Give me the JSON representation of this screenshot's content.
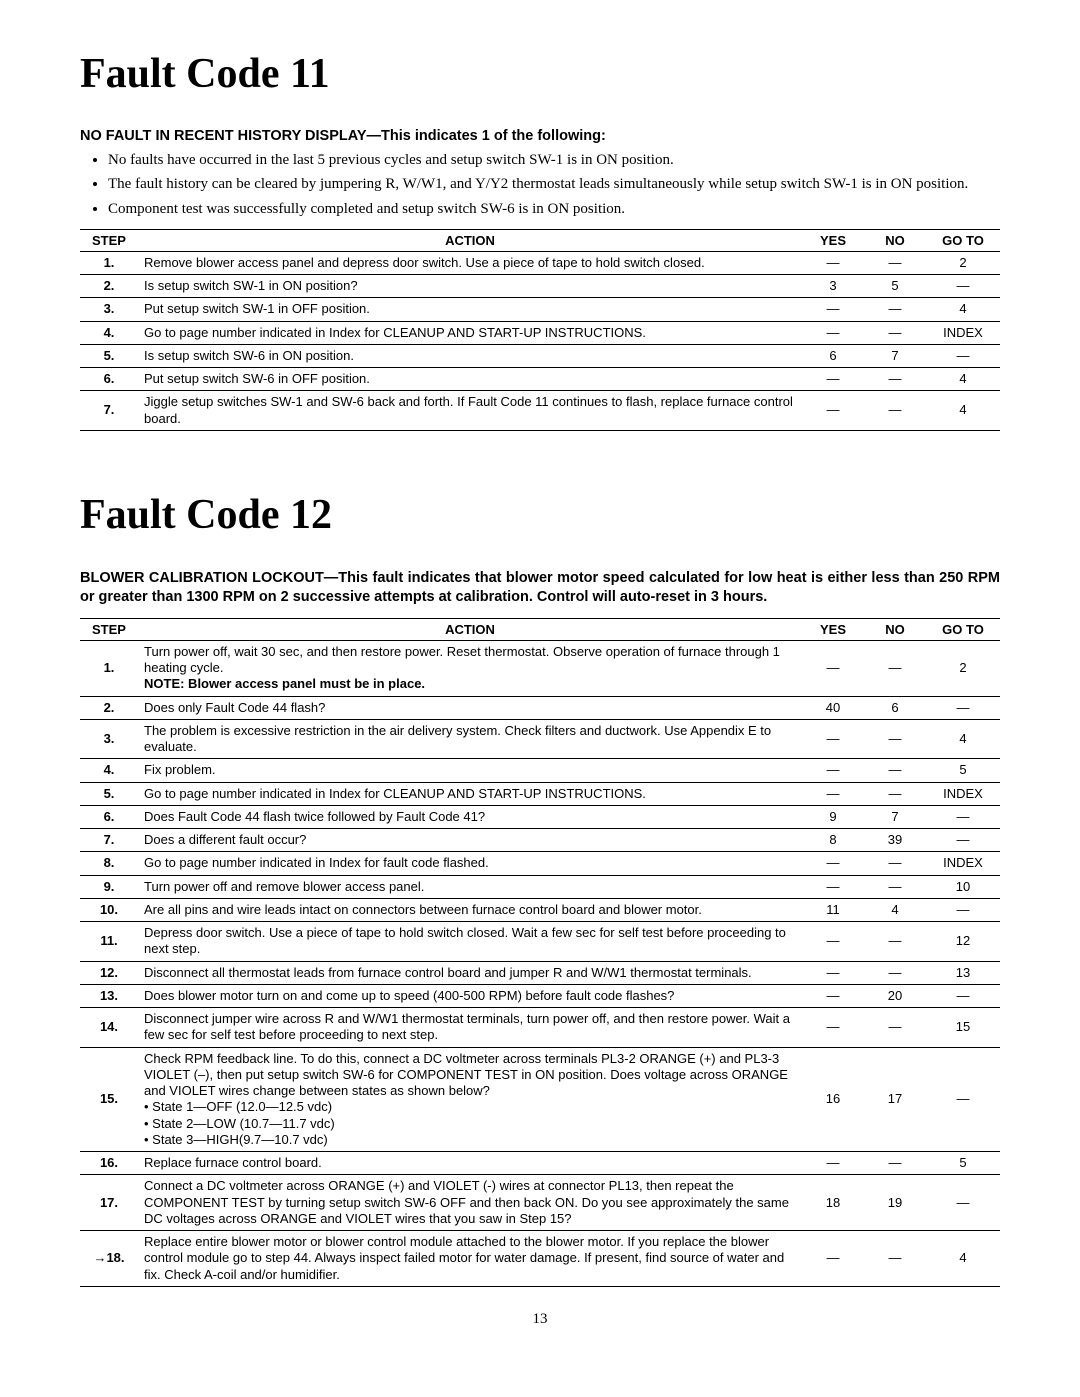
{
  "page_number": "13",
  "fc11": {
    "title": "Fault Code 11",
    "subhead": "NO FAULT IN RECENT HISTORY DISPLAY—This indicates 1 of the following:",
    "conditions": [
      "No faults have occurred in the last 5 previous cycles and setup switch SW-1 is in ON position.",
      "The fault history can be cleared by jumpering R, W/W1, and Y/Y2 thermostat leads simultaneously while setup switch SW-1 is in ON position.",
      "Component test was successfully completed and setup switch SW-6 is in ON position."
    ],
    "headers": {
      "step": "STEP",
      "action": "ACTION",
      "yes": "YES",
      "no": "NO",
      "goto": "GO TO"
    },
    "rows": [
      {
        "step": "1.",
        "action": "Remove blower access panel and depress door switch. Use a piece of tape to hold switch closed.",
        "yes": "—",
        "no": "—",
        "goto": "2"
      },
      {
        "step": "2.",
        "action": "Is setup switch SW-1 in ON position?",
        "yes": "3",
        "no": "5",
        "goto": "—"
      },
      {
        "step": "3.",
        "action": "Put setup switch SW-1 in OFF position.",
        "yes": "—",
        "no": "—",
        "goto": "4"
      },
      {
        "step": "4.",
        "action": "Go to page number indicated in Index for CLEANUP AND START-UP INSTRUCTIONS.",
        "yes": "—",
        "no": "—",
        "goto": "INDEX"
      },
      {
        "step": "5.",
        "action": "Is setup switch SW-6 in ON position.",
        "yes": "6",
        "no": "7",
        "goto": "—"
      },
      {
        "step": "6.",
        "action": "Put setup switch SW-6 in OFF position.",
        "yes": "—",
        "no": "—",
        "goto": "4"
      },
      {
        "step": "7.",
        "action": "Jiggle setup switches SW-1 and SW-6 back and forth. If Fault Code 11 continues to flash, replace furnace control board.",
        "yes": "—",
        "no": "—",
        "goto": "4"
      }
    ]
  },
  "fc12": {
    "title": "Fault Code 12",
    "desc": "BLOWER CALIBRATION LOCKOUT—This fault indicates that blower motor speed calculated for low heat is either less than 250 RPM or greater than 1300 RPM on 2 successive attempts at calibration. Control will auto-reset in 3 hours.",
    "headers": {
      "step": "STEP",
      "action": "ACTION",
      "yes": "YES",
      "no": "NO",
      "goto": "GO TO"
    },
    "rows": [
      {
        "step": "1.",
        "action_plain": "Turn power off, wait 30 sec, and then restore power. Reset thermostat. Observe operation of furnace through 1 heating cycle.",
        "action_note": "NOTE: Blower access panel must be in place.",
        "yes": "—",
        "no": "—",
        "goto": "2"
      },
      {
        "step": "2.",
        "action_plain": "Does only Fault Code 44 flash?",
        "yes": "40",
        "no": "6",
        "goto": "—"
      },
      {
        "step": "3.",
        "action_plain": "The problem is excessive restriction in the air delivery system. Check filters and ductwork. Use Appendix E to evaluate.",
        "yes": "—",
        "no": "—",
        "goto": "4"
      },
      {
        "step": "4.",
        "action_plain": "Fix problem.",
        "yes": "—",
        "no": "—",
        "goto": "5"
      },
      {
        "step": "5.",
        "action_plain": "Go to page number indicated in Index for CLEANUP AND START-UP INSTRUCTIONS.",
        "yes": "—",
        "no": "—",
        "goto": "INDEX"
      },
      {
        "step": "6.",
        "action_plain": "Does Fault Code 44 flash twice followed by Fault Code 41?",
        "yes": "9",
        "no": "7",
        "goto": "—"
      },
      {
        "step": "7.",
        "action_plain": "Does a different fault occur?",
        "yes": "8",
        "no": "39",
        "goto": "—"
      },
      {
        "step": "8.",
        "action_plain": "Go to page number indicated in Index for fault code flashed.",
        "yes": "—",
        "no": "—",
        "goto": "INDEX"
      },
      {
        "step": "9.",
        "action_plain": "Turn power off and remove blower access panel.",
        "yes": "—",
        "no": "—",
        "goto": "10"
      },
      {
        "step": "10.",
        "action_plain": "Are all pins and wire leads intact on connectors between furnace control board and blower motor.",
        "yes": "11",
        "no": "4",
        "goto": "—"
      },
      {
        "step": "11.",
        "action_plain": "Depress door switch. Use a piece of tape to hold switch closed. Wait a few sec for self test before proceeding to next step.",
        "yes": "—",
        "no": "—",
        "goto": "12"
      },
      {
        "step": "12.",
        "action_plain": "Disconnect all thermostat leads from furnace control board and jumper R and W/W1 thermostat terminals.",
        "yes": "—",
        "no": "—",
        "goto": "13"
      },
      {
        "step": "13.",
        "action_plain": "Does blower motor turn on and come up to speed (400-500 RPM) before fault code flashes?",
        "yes": "—",
        "no": "20",
        "goto": "—"
      },
      {
        "step": "14.",
        "action_plain": "Disconnect jumper wire across R and W/W1 thermostat terminals, turn power off, and then restore power. Wait a few sec for self test before proceeding to next step.",
        "yes": "—",
        "no": "—",
        "goto": "15"
      },
      {
        "step": "15.",
        "action_plain": "Check RPM feedback line. To do this, connect a DC voltmeter across terminals PL3-2 ORANGE (+) and PL3-3 VIOLET (–), then put setup switch SW-6 for COMPONENT TEST in ON position. Does voltage across ORANGE and VIOLET wires change between states as shown below?",
        "action_states": [
          "• State 1—OFF (12.0—12.5 vdc)",
          "• State 2—LOW (10.7—11.7 vdc)",
          "• State 3—HIGH(9.7—10.7 vdc)"
        ],
        "yes": "16",
        "no": "17",
        "goto": "—"
      },
      {
        "step": "16.",
        "action_plain": "Replace furnace control board.",
        "yes": "—",
        "no": "—",
        "goto": "5"
      },
      {
        "step": "17.",
        "action_plain": "Connect a DC voltmeter across ORANGE (+) and VIOLET (-) wires at connector PL13, then repeat the COMPONENT TEST by turning setup switch SW-6 OFF and then back ON. Do you see approximately the same DC voltages across ORANGE and VIOLET wires that you saw in Step 15?",
        "yes": "18",
        "no": "19",
        "goto": "—"
      },
      {
        "step": "→18.",
        "action_plain": "Replace entire blower motor or blower control module attached to the blower motor. If you replace the blower control module go to step 44. Always inspect failed motor for water damage. If present, find source of water and fix. Check A-coil and/or humidifier.",
        "yes": "—",
        "no": "—",
        "goto": "4"
      }
    ]
  }
}
